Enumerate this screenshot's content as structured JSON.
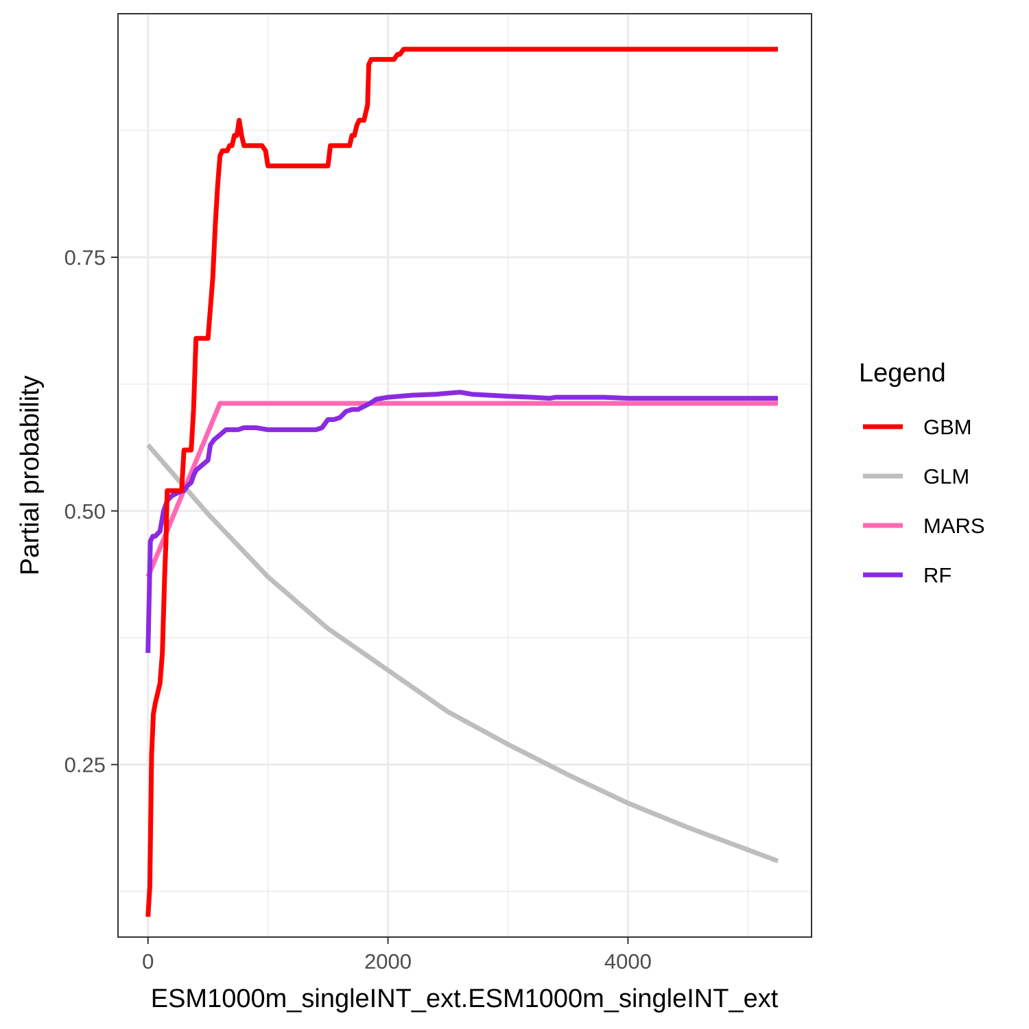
{
  "chart_data": {
    "type": "line",
    "xlabel": "ESM1000m_singleINT_ext.ESM1000m_singleINT_ext",
    "ylabel": "Partial probability",
    "xlim": [
      -250,
      5530
    ],
    "ylim": [
      0.08,
      0.99
    ],
    "x_ticks": [
      0,
      2000,
      4000
    ],
    "x_tick_labels": [
      "0",
      "2000",
      "4000"
    ],
    "y_ticks": [
      0.25,
      0.5,
      0.75
    ],
    "y_tick_labels": [
      "0.25",
      "0.50",
      "0.75"
    ],
    "x_minor_ticks": [
      1000,
      3000,
      5000
    ],
    "y_minor_ticks": [
      0.125,
      0.375,
      0.625,
      0.875
    ],
    "grid": true,
    "legend": {
      "title": "Legend",
      "position": "right"
    },
    "series": [
      {
        "name": "GBM",
        "color": "#ff0000",
        "x": [
          0,
          15,
          30,
          45,
          60,
          80,
          100,
          120,
          140,
          150,
          160,
          175,
          200,
          250,
          280,
          300,
          320,
          360,
          380,
          400,
          410,
          420,
          440,
          460,
          480,
          500,
          520,
          540,
          560,
          580,
          600,
          620,
          640,
          660,
          680,
          700,
          720,
          740,
          760,
          780,
          800,
          850,
          900,
          950,
          980,
          1000,
          1050,
          1100,
          1200,
          1300,
          1400,
          1500,
          1520,
          1550,
          1650,
          1680,
          1700,
          1720,
          1740,
          1760,
          1800,
          1830,
          1840,
          1860,
          1900,
          2000,
          2050,
          2080,
          2100,
          2130,
          2150,
          2200,
          2400,
          3000,
          4000,
          5250
        ],
        "values": [
          0.1,
          0.13,
          0.26,
          0.3,
          0.31,
          0.32,
          0.33,
          0.36,
          0.44,
          0.47,
          0.52,
          0.52,
          0.52,
          0.52,
          0.52,
          0.56,
          0.56,
          0.56,
          0.6,
          0.67,
          0.67,
          0.67,
          0.67,
          0.67,
          0.67,
          0.67,
          0.7,
          0.73,
          0.78,
          0.82,
          0.85,
          0.855,
          0.855,
          0.855,
          0.86,
          0.86,
          0.87,
          0.87,
          0.885,
          0.87,
          0.86,
          0.86,
          0.86,
          0.86,
          0.855,
          0.84,
          0.84,
          0.84,
          0.84,
          0.84,
          0.84,
          0.84,
          0.86,
          0.86,
          0.86,
          0.86,
          0.87,
          0.87,
          0.88,
          0.885,
          0.885,
          0.9,
          0.94,
          0.945,
          0.945,
          0.945,
          0.945,
          0.95,
          0.95,
          0.955,
          0.955,
          0.955,
          0.955,
          0.955,
          0.955,
          0.955
        ]
      },
      {
        "name": "GLM",
        "color": "#bebebe",
        "x": [
          0,
          500,
          1000,
          1500,
          2000,
          2500,
          3000,
          3500,
          4000,
          4500,
          5000,
          5250
        ],
        "values": [
          0.565,
          0.497,
          0.435,
          0.384,
          0.343,
          0.302,
          0.27,
          0.24,
          0.212,
          0.188,
          0.166,
          0.155
        ]
      },
      {
        "name": "MARS",
        "color": "#ff69b4",
        "x": [
          0,
          600,
          1000,
          2000,
          3000,
          4000,
          5250
        ],
        "values": [
          0.435,
          0.606,
          0.606,
          0.606,
          0.606,
          0.606,
          0.606
        ]
      },
      {
        "name": "RF",
        "color": "#8a2be2",
        "x": [
          0,
          20,
          40,
          60,
          100,
          130,
          160,
          200,
          250,
          300,
          330,
          360,
          380,
          400,
          450,
          500,
          520,
          550,
          600,
          650,
          700,
          750,
          800,
          900,
          1000,
          1100,
          1200,
          1300,
          1400,
          1450,
          1500,
          1550,
          1600,
          1650,
          1700,
          1750,
          1800,
          1850,
          1900,
          2000,
          2200,
          2400,
          2600,
          2700,
          3000,
          3200,
          3350,
          3400,
          3600,
          3800,
          4000,
          4500,
          5000,
          5250
        ],
        "values": [
          0.36,
          0.47,
          0.475,
          0.475,
          0.48,
          0.5,
          0.51,
          0.515,
          0.518,
          0.52,
          0.525,
          0.528,
          0.535,
          0.54,
          0.545,
          0.55,
          0.565,
          0.57,
          0.575,
          0.58,
          0.58,
          0.58,
          0.582,
          0.582,
          0.58,
          0.58,
          0.58,
          0.58,
          0.58,
          0.582,
          0.59,
          0.59,
          0.592,
          0.598,
          0.6,
          0.6,
          0.603,
          0.606,
          0.61,
          0.612,
          0.614,
          0.615,
          0.617,
          0.615,
          0.613,
          0.612,
          0.611,
          0.612,
          0.612,
          0.612,
          0.611,
          0.611,
          0.611,
          0.611
        ]
      }
    ]
  }
}
